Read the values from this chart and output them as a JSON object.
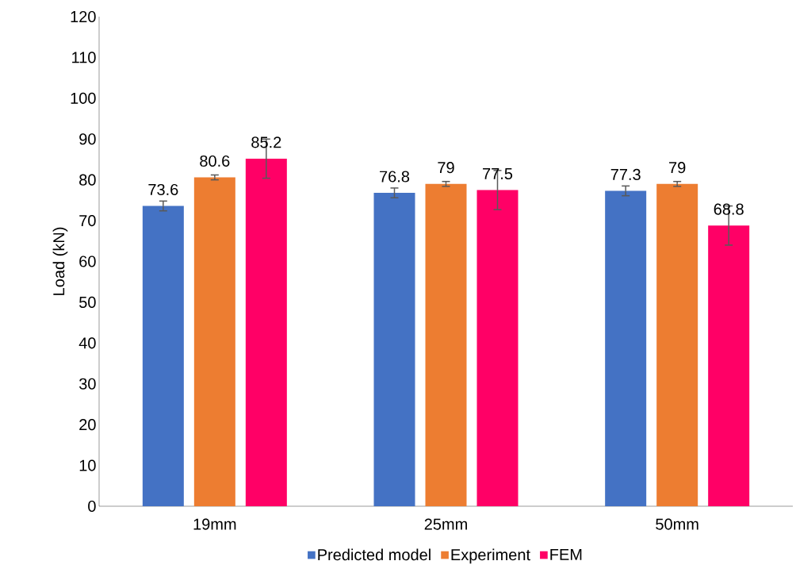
{
  "chart_data": {
    "type": "bar",
    "ylabel": "Load (kN)",
    "categories": [
      "19mm",
      "25mm",
      "50mm"
    ],
    "series": [
      {
        "name": "Predicted model",
        "color": "#4472c4",
        "values": [
          73.6,
          76.8,
          77.3
        ],
        "errors": [
          1.2,
          1.2,
          1.2
        ]
      },
      {
        "name": "Experiment",
        "color": "#ed7d31",
        "values": [
          80.6,
          79,
          79
        ],
        "errors": [
          0.6,
          0.6,
          0.6
        ]
      },
      {
        "name": "FEM",
        "color": "#ff0066",
        "values": [
          85.2,
          77.5,
          68.8
        ],
        "errors": [
          4.8,
          4.8,
          4.8
        ]
      }
    ],
    "ylim": [
      0,
      120
    ],
    "yticks": [
      0,
      10,
      20,
      30,
      40,
      50,
      60,
      70,
      80,
      90,
      100,
      110,
      120
    ],
    "data_labels": true,
    "grid": false,
    "legend": "bottom"
  }
}
